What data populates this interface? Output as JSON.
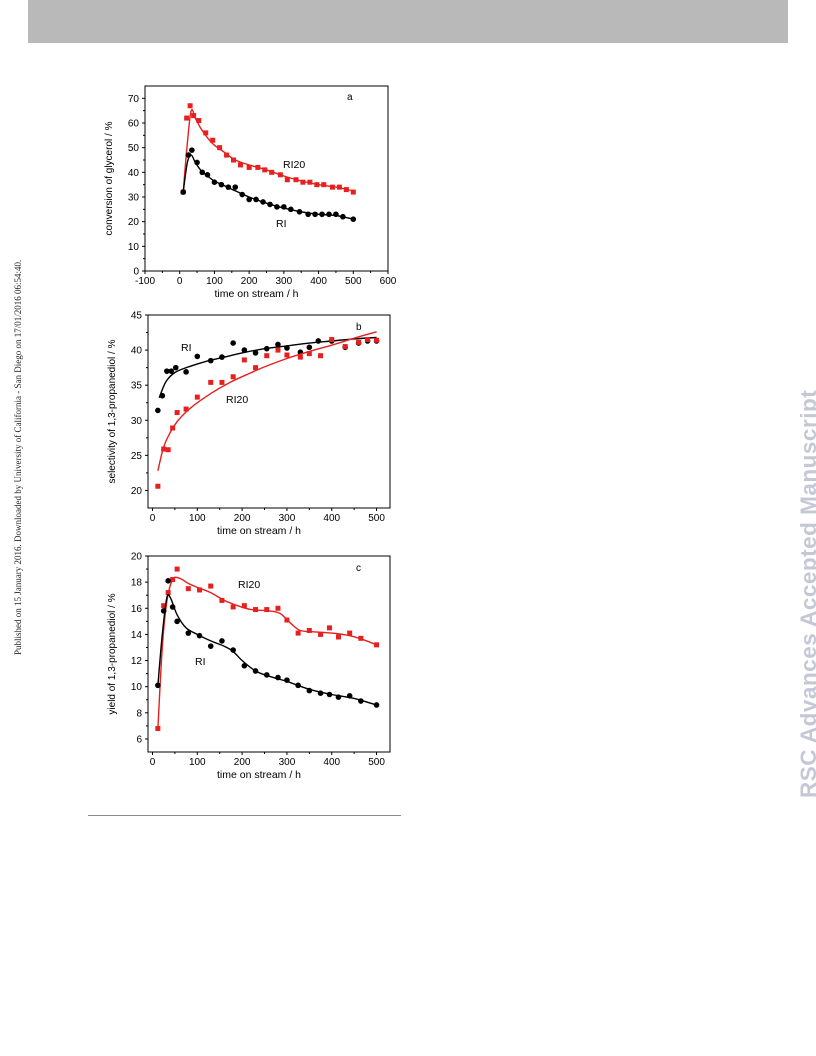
{
  "side_note": "Published on 15 January 2016. Downloaded by University of California - San Diego on 17/01/2016 06:54:40.",
  "watermark": "RSC Advances Accepted Manuscript",
  "colors": {
    "ri": "#000000",
    "ri20": "#e5201e",
    "axis": "#000000"
  },
  "chart_data": [
    {
      "type": "line",
      "panel_label": "a",
      "xlabel": "time on stream / h",
      "ylabel": "conversion of glycerol / %",
      "xlim": [
        -100,
        600
      ],
      "ylim": [
        0,
        75
      ],
      "xticks": [
        -100,
        0,
        100,
        200,
        300,
        400,
        500,
        600
      ],
      "yticks": [
        0,
        10,
        20,
        30,
        40,
        50,
        60,
        70
      ],
      "series": [
        {
          "name": "RI20",
          "marker": "square",
          "points": [
            [
              10,
              32
            ],
            [
              20,
              62
            ],
            [
              30,
              67
            ],
            [
              40,
              63
            ],
            [
              55,
              61
            ],
            [
              75,
              56
            ],
            [
              95,
              53
            ],
            [
              115,
              50
            ],
            [
              135,
              47
            ],
            [
              155,
              45
            ],
            [
              175,
              43
            ],
            [
              200,
              42
            ],
            [
              225,
              42
            ],
            [
              245,
              41
            ],
            [
              265,
              40
            ],
            [
              290,
              39
            ],
            [
              310,
              37
            ],
            [
              335,
              37
            ],
            [
              355,
              36
            ],
            [
              375,
              36
            ],
            [
              395,
              35
            ],
            [
              415,
              35
            ],
            [
              440,
              34
            ],
            [
              460,
              34
            ],
            [
              480,
              33
            ],
            [
              500,
              32
            ]
          ],
          "fit": [
            [
              10,
              32
            ],
            [
              22,
              52
            ],
            [
              33,
              65
            ],
            [
              45,
              62
            ],
            [
              60,
              58
            ],
            [
              80,
              54
            ],
            [
              100,
              51
            ],
            [
              130,
              48
            ],
            [
              160,
              45
            ],
            [
              200,
              43
            ],
            [
              250,
              41
            ],
            [
              300,
              38.5
            ],
            [
              350,
              36.5
            ],
            [
              400,
              35
            ],
            [
              450,
              34
            ],
            [
              500,
              32.5
            ]
          ]
        },
        {
          "name": "RI",
          "marker": "circle",
          "points": [
            [
              10,
              32
            ],
            [
              25,
              47
            ],
            [
              35,
              49
            ],
            [
              50,
              44
            ],
            [
              65,
              40
            ],
            [
              80,
              39
            ],
            [
              100,
              36
            ],
            [
              120,
              35
            ],
            [
              140,
              34
            ],
            [
              160,
              34
            ],
            [
              180,
              31
            ],
            [
              200,
              29
            ],
            [
              220,
              29
            ],
            [
              240,
              28
            ],
            [
              260,
              27
            ],
            [
              280,
              26
            ],
            [
              300,
              26
            ],
            [
              320,
              25
            ],
            [
              345,
              24
            ],
            [
              370,
              23
            ],
            [
              390,
              23
            ],
            [
              410,
              23
            ],
            [
              430,
              23
            ],
            [
              450,
              23
            ],
            [
              470,
              22
            ],
            [
              500,
              21
            ]
          ],
          "fit": [
            [
              10,
              32
            ],
            [
              22,
              44
            ],
            [
              33,
              47
            ],
            [
              45,
              44
            ],
            [
              60,
              41
            ],
            [
              80,
              38.5
            ],
            [
              100,
              36.5
            ],
            [
              130,
              34.5
            ],
            [
              160,
              32.5
            ],
            [
              200,
              30
            ],
            [
              250,
              27.5
            ],
            [
              300,
              25.5
            ],
            [
              350,
              24
            ],
            [
              400,
              23
            ],
            [
              450,
              22.5
            ],
            [
              500,
              21
            ]
          ]
        }
      ]
    },
    {
      "type": "line",
      "panel_label": "b",
      "xlabel": "time on stream / h",
      "ylabel": "selectivity of 1,3-propanediol / %",
      "xlim": [
        -10,
        530
      ],
      "ylim": [
        17.5,
        45
      ],
      "xticks": [
        0,
        100,
        200,
        300,
        400,
        500
      ],
      "yticks": [
        20,
        25,
        30,
        35,
        40,
        45
      ],
      "series": [
        {
          "name": "RI",
          "marker": "circle",
          "points": [
            [
              12,
              31.4
            ],
            [
              22,
              33.5
            ],
            [
              32,
              37
            ],
            [
              42,
              37
            ],
            [
              52,
              37.5
            ],
            [
              75,
              36.9
            ],
            [
              100,
              39.1
            ],
            [
              130,
              38.5
            ],
            [
              155,
              39
            ],
            [
              180,
              41
            ],
            [
              205,
              40
            ],
            [
              230,
              39.6
            ],
            [
              255,
              40.2
            ],
            [
              280,
              40.8
            ],
            [
              300,
              40.3
            ],
            [
              330,
              39.7
            ],
            [
              350,
              40.4
            ],
            [
              370,
              41.3
            ],
            [
              400,
              41.3
            ],
            [
              430,
              40.4
            ],
            [
              460,
              41
            ],
            [
              480,
              41.3
            ],
            [
              500,
              41.3
            ]
          ],
          "fit": [
            [
              15,
              33.2
            ],
            [
              30,
              35.5
            ],
            [
              50,
              36.8
            ],
            [
              80,
              37.6
            ],
            [
              120,
              38.4
            ],
            [
              160,
              39
            ],
            [
              200,
              39.6
            ],
            [
              250,
              40.2
            ],
            [
              300,
              40.6
            ],
            [
              350,
              41
            ],
            [
              400,
              41.3
            ],
            [
              450,
              41.6
            ],
            [
              500,
              41.8
            ]
          ]
        },
        {
          "name": "RI20",
          "marker": "square",
          "points": [
            [
              12,
              20.6
            ],
            [
              25,
              25.9
            ],
            [
              35,
              25.8
            ],
            [
              45,
              28.9
            ],
            [
              55,
              31.1
            ],
            [
              75,
              31.6
            ],
            [
              100,
              33.3
            ],
            [
              130,
              35.4
            ],
            [
              155,
              35.4
            ],
            [
              180,
              36.2
            ],
            [
              205,
              38.6
            ],
            [
              230,
              37.5
            ],
            [
              255,
              39.2
            ],
            [
              280,
              40
            ],
            [
              300,
              39.3
            ],
            [
              330,
              39
            ],
            [
              350,
              39.5
            ],
            [
              375,
              39.2
            ],
            [
              400,
              41.5
            ],
            [
              430,
              40.5
            ],
            [
              460,
              41.1
            ],
            [
              480,
              41.5
            ],
            [
              500,
              41.4
            ]
          ],
          "fit": [
            [
              12,
              22.8
            ],
            [
              25,
              26.2
            ],
            [
              40,
              28.3
            ],
            [
              60,
              30.2
            ],
            [
              90,
              32
            ],
            [
              130,
              33.8
            ],
            [
              170,
              35.3
            ],
            [
              210,
              36.5
            ],
            [
              250,
              37.6
            ],
            [
              300,
              38.8
            ],
            [
              350,
              39.8
            ],
            [
              400,
              40.7
            ],
            [
              450,
              41.7
            ],
            [
              500,
              42.6
            ]
          ]
        }
      ]
    },
    {
      "type": "line",
      "panel_label": "c",
      "xlabel": "time on stream / h",
      "ylabel": "yield of 1,3-propanediol / %",
      "xlim": [
        -10,
        530
      ],
      "ylim": [
        5,
        20
      ],
      "xticks": [
        0,
        100,
        200,
        300,
        400,
        500
      ],
      "yticks": [
        6,
        8,
        10,
        12,
        14,
        16,
        18,
        20
      ],
      "series": [
        {
          "name": "RI20",
          "marker": "square",
          "points": [
            [
              12,
              6.8
            ],
            [
              25,
              16.2
            ],
            [
              35,
              17.2
            ],
            [
              45,
              18.2
            ],
            [
              55,
              19
            ],
            [
              80,
              17.5
            ],
            [
              105,
              17.4
            ],
            [
              130,
              17.7
            ],
            [
              155,
              16.6
            ],
            [
              180,
              16.1
            ],
            [
              205,
              16.2
            ],
            [
              230,
              15.9
            ],
            [
              255,
              15.9
            ],
            [
              280,
              16
            ],
            [
              300,
              15.1
            ],
            [
              325,
              14.1
            ],
            [
              350,
              14.3
            ],
            [
              375,
              14
            ],
            [
              395,
              14.5
            ],
            [
              415,
              13.8
            ],
            [
              440,
              14.1
            ],
            [
              465,
              13.7
            ],
            [
              500,
              13.2
            ]
          ],
          "fit": [
            [
              12,
              6.8
            ],
            [
              22,
              13
            ],
            [
              32,
              16.5
            ],
            [
              45,
              18.2
            ],
            [
              60,
              18.3
            ],
            [
              80,
              17.9
            ],
            [
              100,
              17.6
            ],
            [
              130,
              17.2
            ],
            [
              160,
              16.6
            ],
            [
              190,
              16.2
            ],
            [
              220,
              15.9
            ],
            [
              260,
              15.8
            ],
            [
              285,
              15.6
            ],
            [
              310,
              14.8
            ],
            [
              330,
              14.3
            ],
            [
              360,
              14.2
            ],
            [
              400,
              14.1
            ],
            [
              440,
              13.9
            ],
            [
              470,
              13.6
            ],
            [
              500,
              13.2
            ]
          ]
        },
        {
          "name": "RI",
          "marker": "circle",
          "points": [
            [
              12,
              10.1
            ],
            [
              25,
              15.8
            ],
            [
              35,
              18.1
            ],
            [
              45,
              16.1
            ],
            [
              55,
              15
            ],
            [
              80,
              14.1
            ],
            [
              105,
              13.9
            ],
            [
              130,
              13.1
            ],
            [
              155,
              13.5
            ],
            [
              180,
              12.8
            ],
            [
              205,
              11.6
            ],
            [
              230,
              11.2
            ],
            [
              255,
              10.9
            ],
            [
              280,
              10.7
            ],
            [
              300,
              10.5
            ],
            [
              325,
              10.1
            ],
            [
              350,
              9.7
            ],
            [
              375,
              9.5
            ],
            [
              395,
              9.4
            ],
            [
              415,
              9.2
            ],
            [
              440,
              9.3
            ],
            [
              465,
              8.9
            ],
            [
              500,
              8.6
            ]
          ],
          "fit": [
            [
              12,
              10.1
            ],
            [
              22,
              14
            ],
            [
              32,
              16.8
            ],
            [
              40,
              16.8
            ],
            [
              55,
              15.5
            ],
            [
              75,
              14.5
            ],
            [
              100,
              14
            ],
            [
              130,
              13.5
            ],
            [
              160,
              13.1
            ],
            [
              180,
              12.7
            ],
            [
              200,
              12
            ],
            [
              230,
              11.2
            ],
            [
              260,
              10.8
            ],
            [
              300,
              10.4
            ],
            [
              350,
              9.8
            ],
            [
              400,
              9.4
            ],
            [
              450,
              9.1
            ],
            [
              500,
              8.6
            ]
          ]
        }
      ]
    }
  ]
}
